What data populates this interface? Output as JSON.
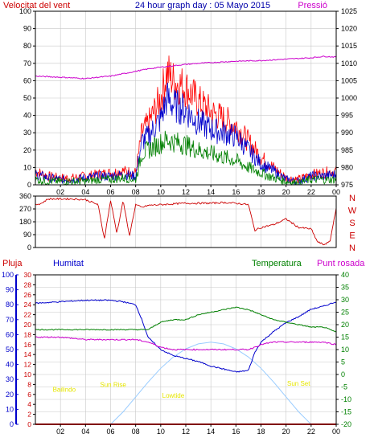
{
  "title": "24 hour graph day : 05 Mayo 2015",
  "colors": {
    "red": "#ff0000",
    "blue": "#0000cc",
    "green": "#008000",
    "magenta": "#cc00cc",
    "yellow": "#e6e600",
    "sun": "#99ccff",
    "grid": "#c8c8c8",
    "axis": "#000000"
  },
  "chart_data": [
    {
      "type": "line",
      "title": "",
      "left_axis_label": "Velocitat del vent",
      "right_axis_label": "Pressió",
      "x_ticks": [
        "02",
        "04",
        "06",
        "08",
        "10",
        "12",
        "14",
        "16",
        "18",
        "20",
        "22",
        "00"
      ],
      "y_left_ticks": [
        "0",
        "10",
        "20",
        "30",
        "40",
        "50",
        "60",
        "70",
        "80",
        "90",
        "100"
      ],
      "y_left_lim": [
        0,
        100
      ],
      "y_right_ticks": [
        "975",
        "980",
        "985",
        "990",
        "995",
        "1000",
        "1005",
        "1010",
        "1015",
        "1020",
        "1025"
      ],
      "y_right_lim": [
        975,
        1025
      ],
      "grid": true,
      "series": [
        {
          "color": "#ff0000",
          "axis": "left",
          "hours": [
            0,
            1,
            2,
            3,
            4,
            5,
            6,
            7,
            8,
            8.5,
            9,
            10,
            10.5,
            11,
            12,
            13,
            14,
            15,
            16,
            17,
            18,
            19,
            20,
            21,
            22,
            23,
            24
          ],
          "values": [
            8,
            5,
            4,
            4,
            5,
            6,
            7,
            8,
            7,
            30,
            35,
            50,
            65,
            60,
            56,
            48,
            42,
            38,
            34,
            25,
            16,
            10,
            4,
            3,
            6,
            7,
            8
          ]
        },
        {
          "color": "#0000cc",
          "axis": "left",
          "hours": [
            0,
            1,
            2,
            3,
            4,
            5,
            6,
            7,
            8,
            8.5,
            9,
            10,
            10.5,
            11,
            12,
            13,
            14,
            15,
            16,
            17,
            18,
            19,
            20,
            21,
            22,
            23,
            24
          ],
          "values": [
            6,
            4,
            3,
            3,
            4,
            5,
            5,
            6,
            5,
            25,
            28,
            38,
            50,
            46,
            43,
            36,
            32,
            30,
            28,
            20,
            12,
            8,
            3,
            2,
            5,
            5,
            6
          ]
        },
        {
          "color": "#008000",
          "axis": "left",
          "hours": [
            0,
            1,
            2,
            3,
            4,
            5,
            6,
            7,
            8,
            8.5,
            9,
            10,
            10.5,
            11,
            12,
            13,
            14,
            15,
            16,
            17,
            18,
            19,
            20,
            21,
            22,
            23,
            24
          ],
          "values": [
            3,
            2,
            2,
            2,
            2,
            3,
            3,
            4,
            3,
            18,
            20,
            24,
            26,
            25,
            23,
            20,
            18,
            16,
            14,
            10,
            7,
            4,
            2,
            1,
            3,
            3,
            3
          ]
        },
        {
          "color": "#cc00cc",
          "axis": "right",
          "hours": [
            0,
            2,
            4,
            5,
            6,
            7,
            8,
            9,
            10,
            11,
            12,
            13,
            14,
            15,
            16,
            17,
            18,
            19,
            20,
            21,
            22,
            23,
            24
          ],
          "values": [
            1006.3,
            1006,
            1005.6,
            1006,
            1006.3,
            1007,
            1007.7,
            1008.4,
            1008.9,
            1009.3,
            1009.7,
            1010,
            1010.2,
            1010.4,
            1010.6,
            1010.7,
            1010.8,
            1011,
            1011.2,
            1011.4,
            1011.6,
            1012,
            1011.8
          ]
        }
      ]
    },
    {
      "type": "line",
      "title": "",
      "direction_labels": [
        "N",
        "W",
        "S",
        "E",
        "N"
      ],
      "y_ticks": [
        "0",
        "90",
        "180",
        "270",
        "360"
      ],
      "ylim": [
        0,
        360
      ],
      "grid": true,
      "series": [
        {
          "color": "#cc0000",
          "hours": [
            0,
            0.5,
            1,
            1.5,
            2,
            3,
            4,
            5,
            5.5,
            6,
            6.5,
            7,
            7.5,
            8,
            8.5,
            9,
            10,
            11,
            12,
            13,
            14,
            15,
            16,
            17,
            17.5,
            18,
            19,
            20,
            21,
            22,
            22.5,
            23,
            23.5,
            24
          ],
          "values": [
            300,
            310,
            340,
            340,
            340,
            340,
            335,
            300,
            60,
            330,
            100,
            330,
            80,
            300,
            280,
            295,
            300,
            305,
            310,
            310,
            310,
            315,
            310,
            300,
            120,
            140,
            160,
            200,
            140,
            130,
            40,
            20,
            40,
            280
          ]
        }
      ]
    },
    {
      "type": "line",
      "title": "",
      "legend_labels": [
        "Pluja",
        "Humitat",
        "Temperatura",
        "Punt rosada"
      ],
      "rain_ticks": [
        "0",
        "2",
        "4",
        "6",
        "8",
        "10",
        "12",
        "14",
        "16",
        "18",
        "20",
        "22",
        "24",
        "26",
        "28",
        "30"
      ],
      "rain_lim": [
        0,
        30
      ],
      "humidity_ticks": [
        "0",
        "10",
        "20",
        "30",
        "40",
        "50",
        "60",
        "70",
        "80",
        "90",
        "100"
      ],
      "humidity_lim": [
        0,
        100
      ],
      "temp_ticks": [
        "-20",
        "-15",
        "-10",
        "-5",
        "0",
        "5",
        "10",
        "15",
        "20",
        "25",
        "30",
        "35",
        "40"
      ],
      "temp_lim": [
        -20,
        40
      ],
      "grid": true,
      "annotations": [
        {
          "text": "Bailindo",
          "hour": 2.3,
          "temp": -7
        },
        {
          "text": "Sun Rise",
          "hour": 6.2,
          "temp": -5
        },
        {
          "text": "Lowtide",
          "hour": 11,
          "temp": -9.3
        },
        {
          "text": "Sun Set",
          "hour": 21,
          "temp": -4.5
        }
      ],
      "series": [
        {
          "name": "Pluja",
          "color": "#ff0000",
          "axis": "rain",
          "hours": [
            0,
            24
          ],
          "values": [
            0,
            0
          ]
        },
        {
          "name": "Humitat",
          "color": "#0000cc",
          "axis": "humidity",
          "hours": [
            0,
            2,
            4,
            6,
            7,
            8,
            8.5,
            9,
            10,
            11,
            12,
            13,
            14,
            15,
            16,
            17,
            17.5,
            18,
            19,
            20,
            21,
            22,
            23,
            24
          ],
          "values": [
            81,
            82,
            83,
            83,
            82,
            80,
            70,
            58,
            50,
            46,
            44,
            42,
            39,
            37,
            35,
            36,
            48,
            55,
            62,
            68,
            72,
            77,
            79,
            82
          ]
        },
        {
          "name": "Temperatura",
          "color": "#008000",
          "axis": "temp",
          "hours": [
            0,
            2,
            4,
            6,
            7,
            8,
            9,
            10,
            11,
            12,
            13,
            14,
            15,
            16,
            17,
            18,
            19,
            20,
            21,
            22,
            23,
            24
          ],
          "values": [
            18,
            18,
            18,
            18,
            18,
            18,
            18,
            21,
            22,
            22,
            24,
            25,
            26,
            27,
            26,
            24,
            22,
            21,
            20,
            19,
            19,
            17
          ]
        },
        {
          "name": "Punt rosada",
          "color": "#cc00cc",
          "axis": "temp",
          "hours": [
            0,
            2,
            4,
            6,
            7,
            8,
            9,
            10,
            11,
            12,
            13,
            14,
            15,
            16,
            17,
            18,
            19,
            20,
            21,
            22,
            23,
            24
          ],
          "values": [
            15,
            15,
            14,
            14,
            14,
            14,
            13,
            11,
            10,
            10,
            10,
            10,
            10,
            10,
            10,
            12,
            13,
            13,
            13,
            13,
            13,
            12
          ]
        },
        {
          "name": "Sun",
          "color": "#99ccff",
          "axis": "temp",
          "hours": [
            6,
            7,
            8,
            9,
            10,
            11,
            12,
            13,
            14,
            15,
            16,
            17,
            18,
            19,
            20,
            21,
            22
          ],
          "values": [
            -20,
            -15,
            -9,
            -3,
            2.5,
            7,
            10.3,
            12.3,
            13,
            12.3,
            10.3,
            7,
            2.5,
            -3,
            -9,
            -15,
            -20
          ]
        }
      ]
    }
  ]
}
